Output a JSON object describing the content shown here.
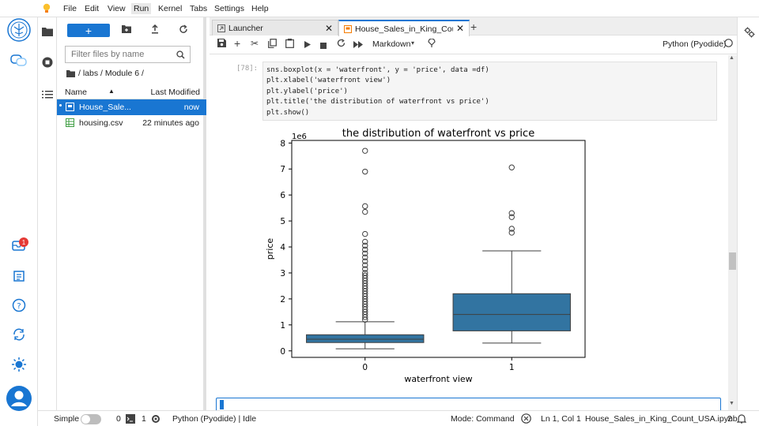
{
  "menu": [
    "File",
    "Edit",
    "View",
    "Run",
    "Kernel",
    "Tabs",
    "Settings",
    "Help"
  ],
  "menu_active": "Run",
  "filebrowser": {
    "new_button": "+",
    "filter_placeholder": "Filter files by name",
    "breadcrumb": "/ labs / Module 6 /",
    "col_name": "Name",
    "col_modified": "Last Modified",
    "files": [
      {
        "name": "House_Sale...",
        "modified": "now",
        "type": "notebook",
        "selected": true
      },
      {
        "name": "housing.csv",
        "modified": "22 minutes ago",
        "type": "csv",
        "selected": false
      }
    ]
  },
  "tabs": [
    {
      "label": "Launcher",
      "current": false
    },
    {
      "label": "House_Sales_in_King_Count_",
      "current": true
    }
  ],
  "toolbar": {
    "cell_type": "Markdown",
    "kernel": "Python (Pyodide)"
  },
  "cell": {
    "prompt": "[78]:",
    "code_lines": [
      "sns.boxplot(x = 'waterfront', y = 'price', data =df)",
      "plt.xlabel('waterfront view')",
      "plt.ylabel('price')",
      "plt.title('the distribution of waterfront vs price')",
      "plt.show()"
    ]
  },
  "notifications_badge": "1",
  "status": {
    "mode_label": "Simple",
    "terminals": "0",
    "kernels": "1",
    "kernel_status": "Python (Pyodide) | Idle",
    "mode": "Mode: Command",
    "position": "Ln 1, Col 1",
    "filename": "House_Sales_in_King_Count_USA.ipynb",
    "notif_count": "2"
  },
  "colors": {
    "accent": "#1976d2",
    "box": "#3274a1"
  },
  "chart_data": {
    "type": "boxplot",
    "title": "the distribution of waterfront vs price",
    "xlabel": "waterfront view",
    "ylabel": "price",
    "y_multiplier_label": "1e6",
    "ylim": [
      -0.25,
      8.1
    ],
    "yticks": [
      0,
      1,
      2,
      3,
      4,
      5,
      6,
      7,
      8
    ],
    "categories": [
      "0",
      "1"
    ],
    "boxes": [
      {
        "category": "0",
        "whisker_low": 0.08,
        "q1": 0.32,
        "median": 0.45,
        "q3": 0.62,
        "whisker_high": 1.12,
        "outliers": [
          7.7,
          6.9,
          5.57,
          5.35,
          4.5,
          4.2,
          4.05,
          3.9,
          3.75,
          3.6,
          3.45,
          3.3,
          3.15,
          3.0,
          2.9,
          2.8,
          2.7,
          2.6,
          2.5,
          2.4,
          2.3,
          2.2,
          2.1,
          2.0,
          1.9,
          1.8,
          1.7,
          1.6,
          1.5,
          1.4,
          1.3,
          1.2
        ]
      },
      {
        "category": "1",
        "whisker_low": 0.3,
        "q1": 0.77,
        "median": 1.4,
        "q3": 2.2,
        "whisker_high": 3.85,
        "outliers": [
          7.06,
          5.3,
          5.15,
          4.7,
          4.55
        ]
      }
    ]
  }
}
